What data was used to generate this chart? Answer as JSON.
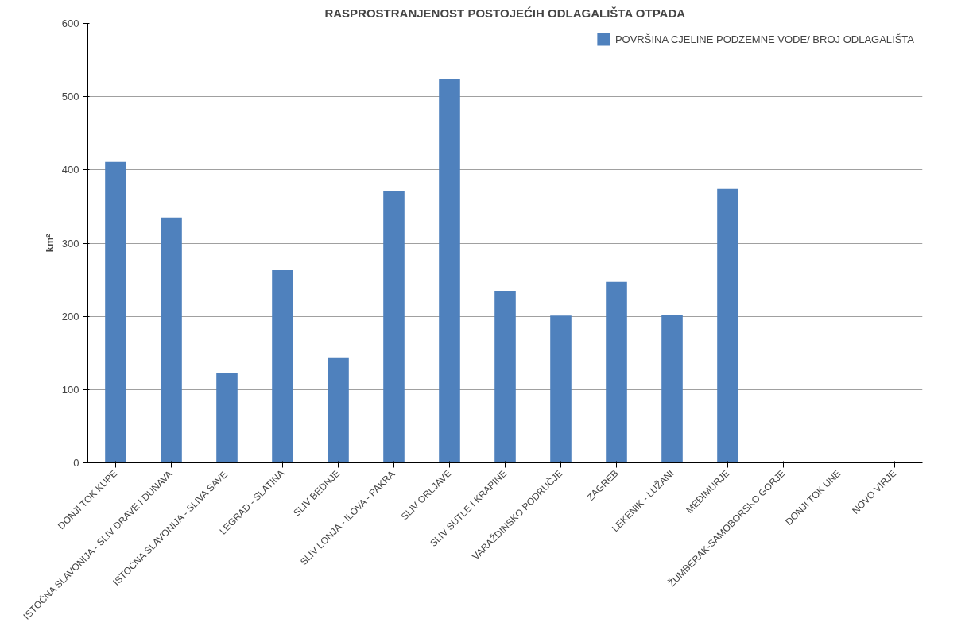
{
  "chart_data": {
    "type": "bar",
    "title": "RASPROSTRANJENOST POSTOJEĆIH ODLAGALIŠTA OTPADA",
    "ylabel": "km²",
    "categories": [
      "DONJI TOK KUPE",
      "ISTOČNA SLAVONIJA - SLIV DRAVE I DUNAVA",
      "ISTOČNA SLAVONIJA - SLIVA SAVE",
      "LEGRAD - SLATINA",
      "SLIV BEDNJE",
      "SLIV LONJA - ILOVA - PAKRA",
      "SLIV ORLJAVE",
      "SLIV SUTLE I KRAPINE",
      "VARAŽDINSKO PODRUČJE",
      "ZAGREB",
      "LEKENIK - LUŽANI",
      "MEĐIMURJE",
      "ŽUMBERAK-SAMOBORSKO GORJE",
      "DONJI TOK UNE",
      "NOVO VIRJE"
    ],
    "series": [
      {
        "name": "POVRŠINA CJELINE PODZEMNE VODE/ BROJ ODLAGALIŠTA",
        "color": "#4f81bd",
        "values": [
          411,
          335,
          123,
          263,
          144,
          371,
          524,
          235,
          201,
          247,
          202,
          374,
          null,
          null,
          null
        ]
      }
    ],
    "ylim": [
      0,
      600
    ],
    "yticks": [
      0,
      100,
      200,
      300,
      400,
      500,
      600
    ],
    "grid": "y",
    "legend": "top right"
  }
}
